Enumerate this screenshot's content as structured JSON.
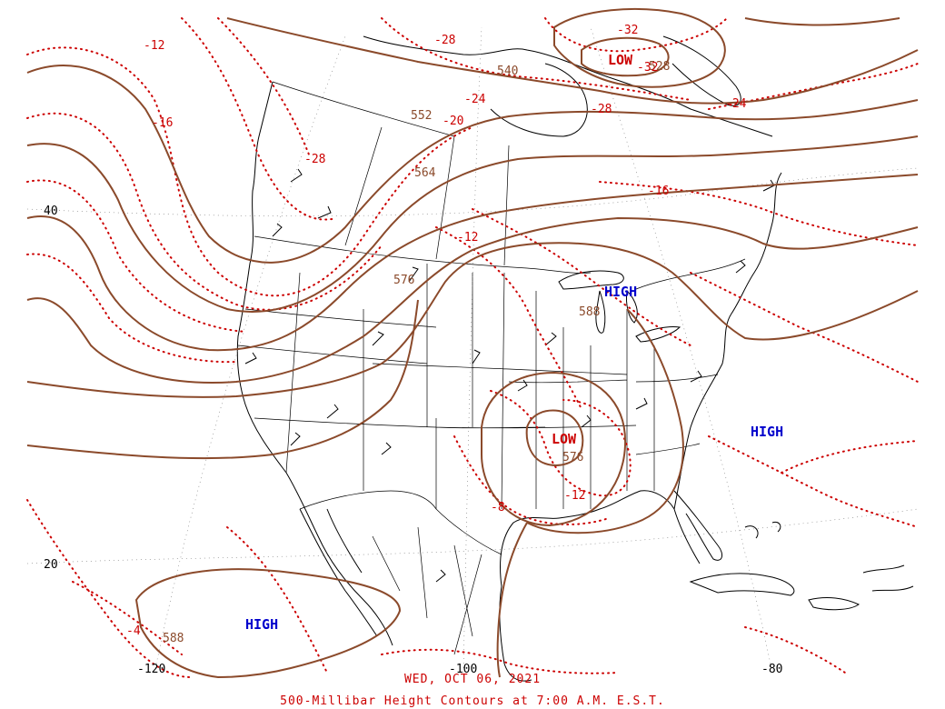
{
  "colors": {
    "height_contour": "#8b4a2b",
    "temperature_contour": "#cc0000",
    "geography": "#000000",
    "high_label": "#0000cc",
    "low_label": "#cc0000",
    "caption": "#cc0000"
  },
  "title": {
    "date": "WED, OCT 06, 2021",
    "main": "500-Millibar Height Contours at 7:00 A.M. E.S.T."
  },
  "pressure_systems": [
    {
      "label": "LOW",
      "type": "low"
    },
    {
      "label": "HIGH",
      "type": "high"
    },
    {
      "label": "LOW",
      "type": "low"
    },
    {
      "label": "HIGH",
      "type": "high"
    },
    {
      "label": "HIGH",
      "type": "high"
    }
  ],
  "height_labels": [
    "540",
    "528",
    "552",
    "564",
    "576",
    "588",
    "576",
    "588"
  ],
  "temperature_labels": [
    "-12",
    "-16",
    "-28",
    "-32",
    "-28",
    "-24",
    "-20",
    "-32",
    "-28",
    "-24",
    "-16",
    "-12",
    "-8",
    "-12",
    "-4"
  ],
  "latitude_labels": [
    "40",
    "20"
  ],
  "longitude_labels": [
    "-120",
    "-100",
    "-80"
  ]
}
